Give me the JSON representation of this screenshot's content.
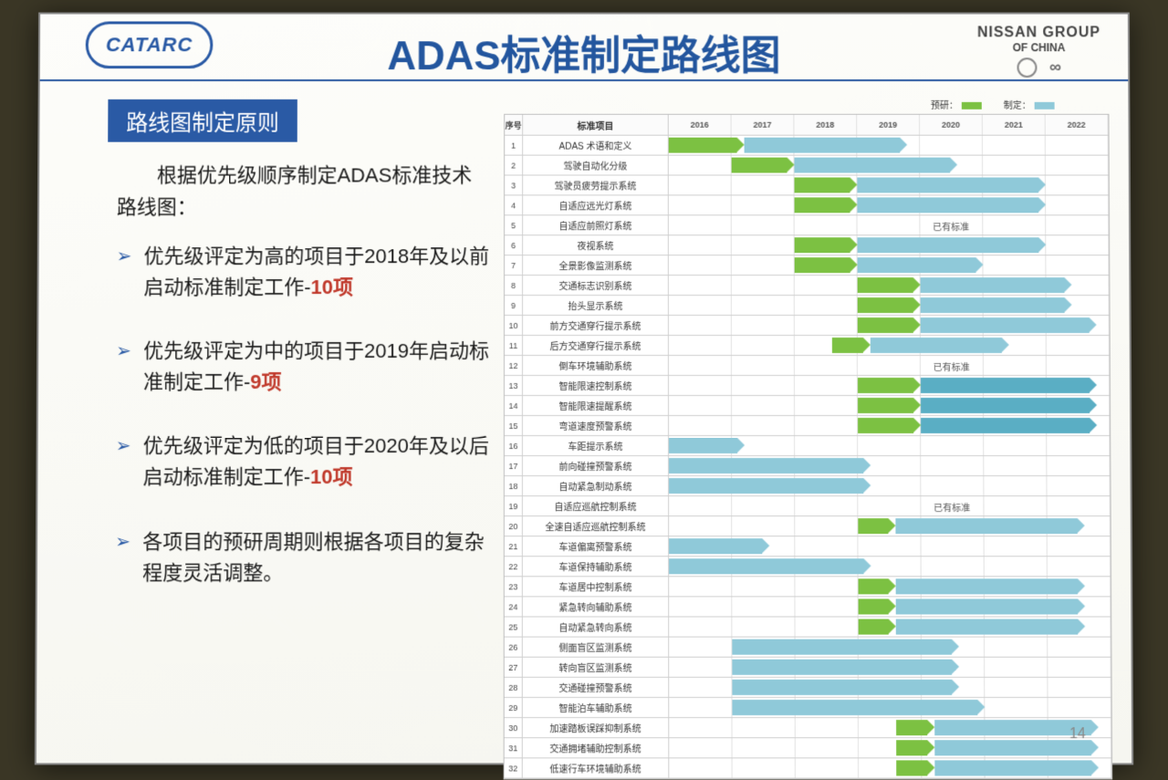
{
  "title": "ADAS标准制定路线图",
  "logo_left": "CATARC",
  "logo_right": {
    "line1": "NISSAN GROUP",
    "line2": "OF CHINA"
  },
  "subtitle": "路线图制定原则",
  "intro": "根据优先级顺序制定ADAS标准技术路线图：",
  "bullets": [
    {
      "pre": "优先级评定为高的项目于2018年及以前启动标准制定工作-",
      "hl": "10项"
    },
    {
      "pre": "优先级评定为中的项目于2019年启动标准制定工作-",
      "hl": "9项"
    },
    {
      "pre": "优先级评定为低的项目于2020年及以后启动标准制定工作-",
      "hl": "10项"
    },
    {
      "pre": "各项目的预研周期则根据各项目的复杂程度灵活调整。",
      "hl": ""
    }
  ],
  "page_number": "14",
  "gantt": {
    "legend": {
      "pre": "预研：",
      "dev": "制定："
    },
    "colors": {
      "pre": "#7cc142",
      "dev": "#8fc9d9",
      "dev2": "#5aaec4",
      "border": "#cfcfcf",
      "bg": "#ffffff"
    },
    "idx_header": "序号",
    "name_header": "标准项目",
    "years": [
      "2016",
      "2017",
      "2018",
      "2019",
      "2020",
      "2021",
      "2022"
    ],
    "col_unit": 69,
    "note_text": "已有标准",
    "rows": [
      {
        "n": 1,
        "name": "ADAS 术语和定义",
        "bars": [
          {
            "start": 0.0,
            "len": 1.2,
            "c": "green"
          },
          {
            "start": 1.2,
            "len": 2.6,
            "c": "blue"
          }
        ]
      },
      {
        "n": 2,
        "name": "驾驶自动化分级",
        "bars": [
          {
            "start": 1.0,
            "len": 1.0,
            "c": "green"
          },
          {
            "start": 2.0,
            "len": 2.6,
            "c": "blue"
          }
        ]
      },
      {
        "n": 3,
        "name": "驾驶员疲劳提示系统",
        "bars": [
          {
            "start": 2.0,
            "len": 1.0,
            "c": "green"
          },
          {
            "start": 3.0,
            "len": 3.0,
            "c": "blue"
          }
        ]
      },
      {
        "n": 4,
        "name": "自适应远光灯系统",
        "bars": [
          {
            "start": 2.0,
            "len": 1.0,
            "c": "green"
          },
          {
            "start": 3.0,
            "len": 3.0,
            "c": "blue"
          }
        ]
      },
      {
        "n": 5,
        "name": "自适应前照灯系统",
        "note_at": 4.2
      },
      {
        "n": 6,
        "name": "夜视系统",
        "bars": [
          {
            "start": 2.0,
            "len": 1.0,
            "c": "green"
          },
          {
            "start": 3.0,
            "len": 3.0,
            "c": "blue"
          }
        ]
      },
      {
        "n": 7,
        "name": "全景影像监测系统",
        "bars": [
          {
            "start": 2.0,
            "len": 1.0,
            "c": "green"
          },
          {
            "start": 3.0,
            "len": 2.0,
            "c": "blue"
          }
        ]
      },
      {
        "n": 8,
        "name": "交通标志识别系统",
        "bars": [
          {
            "start": 3.0,
            "len": 1.0,
            "c": "green"
          },
          {
            "start": 4.0,
            "len": 2.4,
            "c": "blue"
          }
        ]
      },
      {
        "n": 9,
        "name": "抬头显示系统",
        "bars": [
          {
            "start": 3.0,
            "len": 1.0,
            "c": "green"
          },
          {
            "start": 4.0,
            "len": 2.4,
            "c": "blue"
          }
        ]
      },
      {
        "n": 10,
        "name": "前方交通穿行提示系统",
        "bars": [
          {
            "start": 3.0,
            "len": 1.0,
            "c": "green"
          },
          {
            "start": 4.0,
            "len": 2.8,
            "c": "blue"
          }
        ]
      },
      {
        "n": 11,
        "name": "后方交通穿行提示系统",
        "bars": [
          {
            "start": 2.6,
            "len": 0.6,
            "c": "green"
          },
          {
            "start": 3.2,
            "len": 2.2,
            "c": "blue"
          }
        ]
      },
      {
        "n": 12,
        "name": "倒车环境辅助系统",
        "note_at": 4.2
      },
      {
        "n": 13,
        "name": "智能限速控制系统",
        "bars": [
          {
            "start": 3.0,
            "len": 1.0,
            "c": "green"
          },
          {
            "start": 4.0,
            "len": 2.8,
            "c": "dkblue"
          }
        ]
      },
      {
        "n": 14,
        "name": "智能限速提醒系统",
        "bars": [
          {
            "start": 3.0,
            "len": 1.0,
            "c": "green"
          },
          {
            "start": 4.0,
            "len": 2.8,
            "c": "dkblue"
          }
        ]
      },
      {
        "n": 15,
        "name": "弯道速度预警系统",
        "bars": [
          {
            "start": 3.0,
            "len": 1.0,
            "c": "green"
          },
          {
            "start": 4.0,
            "len": 2.8,
            "c": "dkblue"
          }
        ]
      },
      {
        "n": 16,
        "name": "车距提示系统",
        "bars": [
          {
            "start": 0.0,
            "len": 1.2,
            "c": "blue"
          }
        ]
      },
      {
        "n": 17,
        "name": "前向碰撞预警系统",
        "bars": [
          {
            "start": 0.0,
            "len": 3.2,
            "c": "blue"
          }
        ]
      },
      {
        "n": 18,
        "name": "自动紧急制动系统",
        "bars": [
          {
            "start": 0.0,
            "len": 3.2,
            "c": "blue"
          }
        ]
      },
      {
        "n": 19,
        "name": "自适应巡航控制系统",
        "note_at": 4.2
      },
      {
        "n": 20,
        "name": "全速自适应巡航控制系统",
        "bars": [
          {
            "start": 3.0,
            "len": 0.6,
            "c": "green"
          },
          {
            "start": 3.6,
            "len": 3.0,
            "c": "blue"
          }
        ]
      },
      {
        "n": 21,
        "name": "车道偏离预警系统",
        "bars": [
          {
            "start": 0.0,
            "len": 1.6,
            "c": "blue"
          }
        ]
      },
      {
        "n": 22,
        "name": "车道保持辅助系统",
        "bars": [
          {
            "start": 0.0,
            "len": 3.2,
            "c": "blue"
          }
        ]
      },
      {
        "n": 23,
        "name": "车道居中控制系统",
        "bars": [
          {
            "start": 3.0,
            "len": 0.6,
            "c": "green"
          },
          {
            "start": 3.6,
            "len": 3.0,
            "c": "blue"
          }
        ]
      },
      {
        "n": 24,
        "name": "紧急转向辅助系统",
        "bars": [
          {
            "start": 3.0,
            "len": 0.6,
            "c": "green"
          },
          {
            "start": 3.6,
            "len": 3.0,
            "c": "blue"
          }
        ]
      },
      {
        "n": 25,
        "name": "自动紧急转向系统",
        "bars": [
          {
            "start": 3.0,
            "len": 0.6,
            "c": "green"
          },
          {
            "start": 3.6,
            "len": 3.0,
            "c": "blue"
          }
        ]
      },
      {
        "n": 26,
        "name": "侧面盲区监测系统",
        "bars": [
          {
            "start": 1.0,
            "len": 3.6,
            "c": "blue"
          }
        ]
      },
      {
        "n": 27,
        "name": "转向盲区监测系统",
        "bars": [
          {
            "start": 1.0,
            "len": 3.6,
            "c": "blue"
          }
        ]
      },
      {
        "n": 28,
        "name": "交通碰撞预警系统",
        "bars": [
          {
            "start": 1.0,
            "len": 3.6,
            "c": "blue"
          }
        ]
      },
      {
        "n": 29,
        "name": "智能泊车辅助系统",
        "bars": [
          {
            "start": 1.0,
            "len": 4.0,
            "c": "blue"
          }
        ]
      },
      {
        "n": 30,
        "name": "加速踏板误踩抑制系统",
        "bars": [
          {
            "start": 3.6,
            "len": 0.6,
            "c": "green"
          },
          {
            "start": 4.2,
            "len": 2.6,
            "c": "blue"
          }
        ]
      },
      {
        "n": 31,
        "name": "交通拥堵辅助控制系统",
        "bars": [
          {
            "start": 3.6,
            "len": 0.6,
            "c": "green"
          },
          {
            "start": 4.2,
            "len": 2.6,
            "c": "blue"
          }
        ]
      },
      {
        "n": 32,
        "name": "低速行车环境辅助系统",
        "bars": [
          {
            "start": 3.6,
            "len": 0.6,
            "c": "green"
          },
          {
            "start": 4.2,
            "len": 2.6,
            "c": "blue"
          }
        ]
      }
    ]
  }
}
